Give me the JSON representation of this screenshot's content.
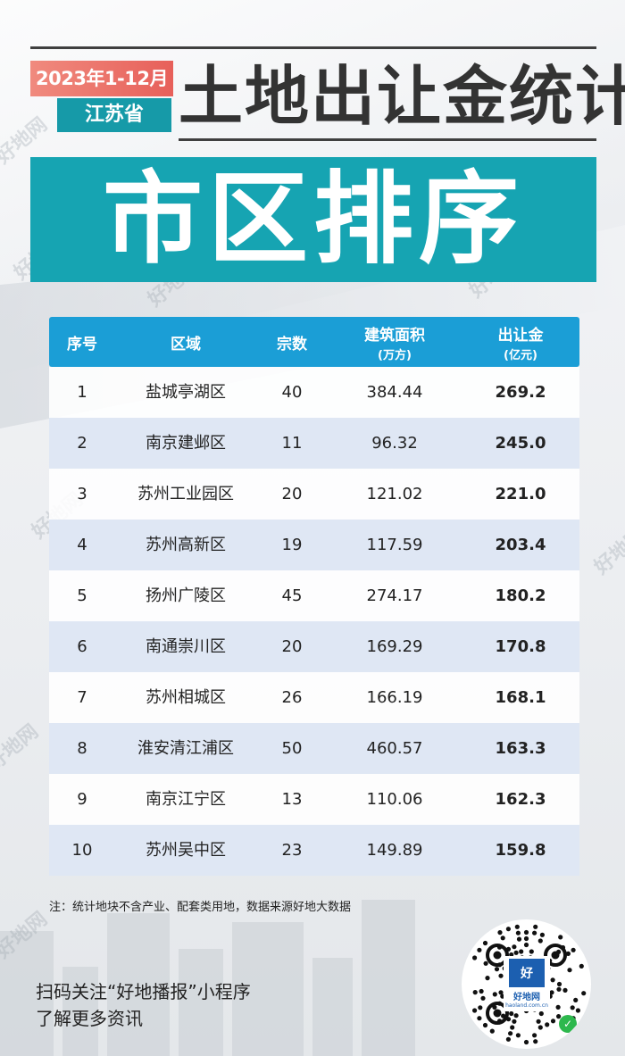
{
  "header": {
    "date_range": "2023年1-12月",
    "province": "江苏省",
    "title": "土地出让金统计",
    "banner": "市区排序"
  },
  "table": {
    "columns": [
      {
        "label": "序号",
        "sub": ""
      },
      {
        "label": "区域",
        "sub": ""
      },
      {
        "label": "宗数",
        "sub": ""
      },
      {
        "label": "建筑面积",
        "sub": "(万方)"
      },
      {
        "label": "出让金",
        "sub": "(亿元)"
      }
    ],
    "rows": [
      {
        "rank": "1",
        "district": "盐城亭湖区",
        "count": "40",
        "area": "384.44",
        "revenue": "269.2"
      },
      {
        "rank": "2",
        "district": "南京建邺区",
        "count": "11",
        "area": "96.32",
        "revenue": "245.0"
      },
      {
        "rank": "3",
        "district": "苏州工业园区",
        "count": "20",
        "area": "121.02",
        "revenue": "221.0"
      },
      {
        "rank": "4",
        "district": "苏州高新区",
        "count": "19",
        "area": "117.59",
        "revenue": "203.4"
      },
      {
        "rank": "5",
        "district": "扬州广陵区",
        "count": "45",
        "area": "274.17",
        "revenue": "180.2"
      },
      {
        "rank": "6",
        "district": "南通崇川区",
        "count": "20",
        "area": "169.29",
        "revenue": "170.8"
      },
      {
        "rank": "7",
        "district": "苏州相城区",
        "count": "26",
        "area": "166.19",
        "revenue": "168.1"
      },
      {
        "rank": "8",
        "district": "淮安清江浦区",
        "count": "50",
        "area": "460.57",
        "revenue": "163.3"
      },
      {
        "rank": "9",
        "district": "南京江宁区",
        "count": "13",
        "area": "110.06",
        "revenue": "162.3"
      },
      {
        "rank": "10",
        "district": "苏州吴中区",
        "count": "23",
        "area": "149.89",
        "revenue": "159.8"
      }
    ]
  },
  "note": "注：统计地块不含产业、配套类用地，数据来源好地大数据",
  "footer": {
    "line1": "扫码关注“好地播报”小程序",
    "line2": "了解更多资讯",
    "qr_name": "好地网",
    "qr_logo_text": "好",
    "qr_url": "haoland.com.cn"
  },
  "watermark_text": "好地网",
  "colors": {
    "accent_teal": "#16a4b2",
    "header_blue": "#1b9ed6",
    "date_red": "#e7605a",
    "row_alt": "#dfe7f4"
  }
}
